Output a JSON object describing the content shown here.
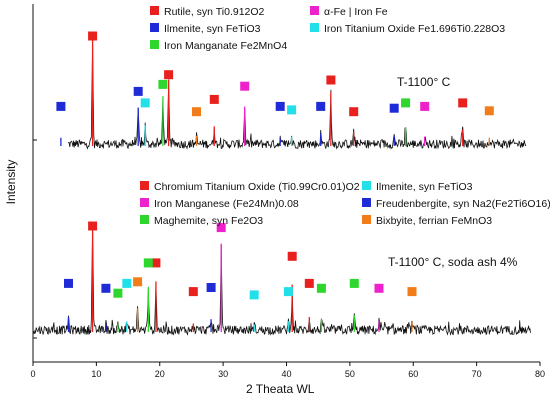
{
  "chart_data": {
    "type": "line",
    "xlabel": "2 Theata WL",
    "ylabel": "Intensity",
    "xlim": [
      0,
      80
    ],
    "x_ticks": [
      "0",
      "10",
      "20",
      "30",
      "40",
      "50",
      "60",
      "70",
      "80"
    ],
    "grid": false,
    "panels": [
      {
        "condition": "T-1100° C",
        "legend": [
          {
            "label": "Rutile, syn Ti0.912O2",
            "color": "#e8201e"
          },
          {
            "label": "α-Fe | Iron Fe",
            "color": "#ee22cc"
          },
          {
            "label": "Ilmenite, syn FeTiO3",
            "color": "#1f2bd6"
          },
          {
            "label": "Iron Titanium Oxide Fe1.696Ti0.228O3",
            "color": "#22e0ea"
          },
          {
            "label": "Iron Manganate Fe2MnO4",
            "color": "#2ed62e"
          }
        ],
        "peaks": [
          {
            "x": 9.4,
            "y": 100,
            "color": "#e8201e",
            "marker": 1.0
          },
          {
            "x": 21.4,
            "y": 62,
            "color": "#e8201e",
            "marker": 0.56
          },
          {
            "x": 20.5,
            "y": 46,
            "color": "#2ed62e",
            "marker": 0.45
          },
          {
            "x": 16.6,
            "y": 35,
            "color": "#1f2bd6",
            "marker": 0.37
          },
          {
            "x": 17.7,
            "y": 18,
            "color": "#22e0ea",
            "marker": 0.24
          },
          {
            "x": 33.4,
            "y": 36,
            "color": "#ee22cc",
            "marker": 0.43
          },
          {
            "x": 47.0,
            "y": 50,
            "color": "#e8201e",
            "marker": 0.5
          },
          {
            "x": 28.6,
            "y": 17,
            "color": "#e8201e",
            "marker": 0.28
          },
          {
            "x": 25.8,
            "y": 8,
            "color": "#f07d1a",
            "marker": 0.14
          },
          {
            "x": 4.4,
            "y": 6,
            "color": "#1f2bd6",
            "marker": 0.2
          },
          {
            "x": 39.0,
            "y": 6,
            "color": "#1f2bd6",
            "marker": 0.2
          },
          {
            "x": 40.8,
            "y": 7,
            "color": "#22e0ea",
            "marker": 0.16
          },
          {
            "x": 45.4,
            "y": 10,
            "color": "#1f2bd6",
            "marker": 0.2
          },
          {
            "x": 50.6,
            "y": 12,
            "color": "#e8201e",
            "marker": 0.14
          },
          {
            "x": 57.0,
            "y": 8,
            "color": "#1f2bd6",
            "marker": 0.18
          },
          {
            "x": 58.8,
            "y": 16,
            "color": "#2ed62e",
            "marker": 0.24
          },
          {
            "x": 61.8,
            "y": 7,
            "color": "#ee22cc",
            "marker": 0.2
          },
          {
            "x": 67.8,
            "y": 14,
            "color": "#e8201e",
            "marker": 0.24
          },
          {
            "x": 72.0,
            "y": 6,
            "color": "#f07d1a",
            "marker": 0.15
          }
        ]
      },
      {
        "condition": "T-1100° C, soda ash 4%",
        "legend": [
          {
            "label": "Chromium Titanium Oxide (Ti0.99Cr0.01)O2",
            "color": "#e8201e"
          },
          {
            "label": "Ilmenite, syn FeTiO3",
            "color": "#22e0ea"
          },
          {
            "label": "Iron Manganese (Fe24Mn)0.08",
            "color": "#ee22cc"
          },
          {
            "label": "Freudenbergite, syn Na2(Fe2Ti6O16)",
            "color": "#1f2bd6"
          },
          {
            "label": "Maghemite, syn Fe2O3",
            "color": "#2ed62e"
          },
          {
            "label": "Bixbyite, ferrian FeMnO3",
            "color": "#f07d1a"
          }
        ],
        "peaks": [
          {
            "x": 9.4,
            "y": 100,
            "color": "#e8201e",
            "marker": 1.0
          },
          {
            "x": 29.7,
            "y": 80,
            "color": "#ee22cc",
            "marker": 0.98
          },
          {
            "x": 19.4,
            "y": 45,
            "color": "#e8201e",
            "marker": 0.55
          },
          {
            "x": 18.2,
            "y": 40,
            "color": "#2ed62e",
            "marker": 0.55
          },
          {
            "x": 40.9,
            "y": 42,
            "color": "#e8201e",
            "marker": 0.63
          },
          {
            "x": 5.6,
            "y": 12,
            "color": "#1f2bd6",
            "marker": 0.3
          },
          {
            "x": 11.5,
            "y": 6,
            "color": "#1f2bd6",
            "marker": 0.24
          },
          {
            "x": 13.4,
            "y": 6,
            "color": "#2ed62e",
            "marker": 0.18
          },
          {
            "x": 14.8,
            "y": 8,
            "color": "#22e0ea",
            "marker": 0.3
          },
          {
            "x": 16.5,
            "y": 20,
            "color": "#f07d1a",
            "marker": 0.32
          },
          {
            "x": 25.3,
            "y": 6,
            "color": "#e8201e",
            "marker": 0.2
          },
          {
            "x": 28.1,
            "y": 10,
            "color": "#1f2bd6",
            "marker": 0.25
          },
          {
            "x": 34.9,
            "y": 5,
            "color": "#22e0ea",
            "marker": 0.16
          },
          {
            "x": 40.3,
            "y": 8,
            "color": "#22e0ea",
            "marker": 0.2
          },
          {
            "x": 43.6,
            "y": 12,
            "color": "#e8201e",
            "marker": 0.3
          },
          {
            "x": 45.5,
            "y": 10,
            "color": "#2ed62e",
            "marker": 0.24
          },
          {
            "x": 50.7,
            "y": 14,
            "color": "#2ed62e",
            "marker": 0.3
          },
          {
            "x": 54.6,
            "y": 8,
            "color": "#ee22cc",
            "marker": 0.24
          },
          {
            "x": 59.8,
            "y": 7,
            "color": "#f07d1a",
            "marker": 0.2
          }
        ]
      }
    ]
  }
}
